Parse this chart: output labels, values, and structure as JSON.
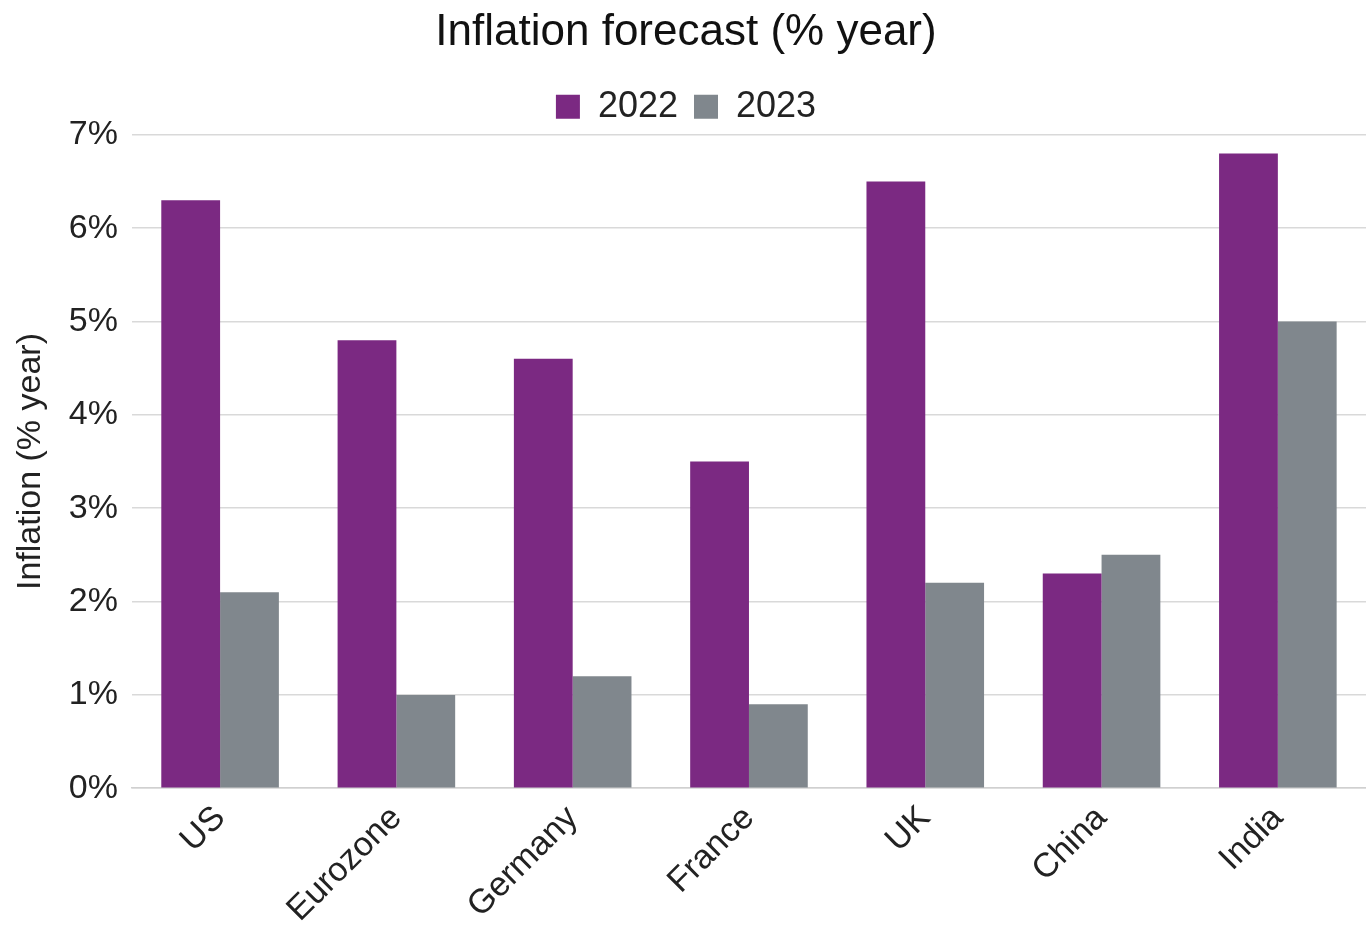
{
  "chart_data": {
    "type": "bar",
    "title": "Inflation forecast (% year)",
    "ylabel": "Inflation (% year)",
    "categories": [
      "US",
      "Eurozone",
      "Germany",
      "France",
      "UK",
      "China",
      "India"
    ],
    "series": [
      {
        "name": "2022",
        "color": "#7b2982",
        "values": [
          6.3,
          4.8,
          4.6,
          3.5,
          6.5,
          2.3,
          6.8
        ]
      },
      {
        "name": "2023",
        "color": "#80878d",
        "values": [
          2.1,
          1.0,
          1.2,
          0.9,
          2.2,
          2.5,
          5.0
        ]
      }
    ],
    "ylim": [
      0,
      7
    ],
    "yticks": [
      {
        "value": 0,
        "label": "0%"
      },
      {
        "value": 1,
        "label": "1%"
      },
      {
        "value": 2,
        "label": "2%"
      },
      {
        "value": 3,
        "label": "3%"
      },
      {
        "value": 4,
        "label": "4%"
      },
      {
        "value": 5,
        "label": "5%"
      },
      {
        "value": 6,
        "label": "6%"
      },
      {
        "value": 7,
        "label": "7%"
      }
    ],
    "grid": "y",
    "legend": "top"
  }
}
